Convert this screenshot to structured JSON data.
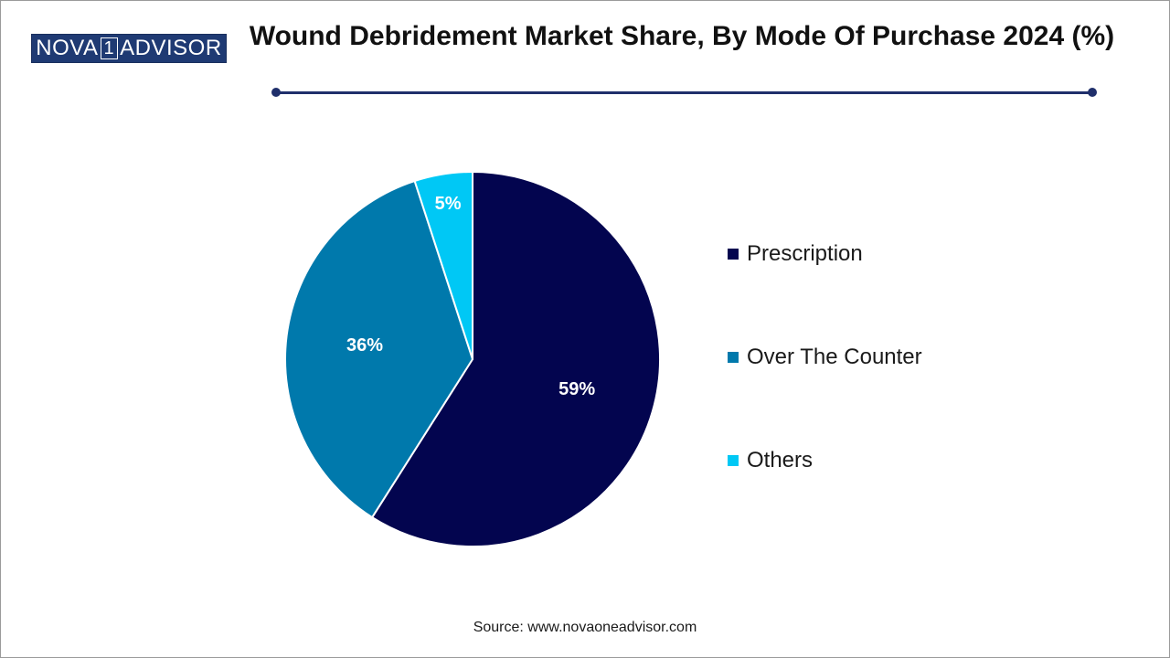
{
  "brand": {
    "left": "NOVA",
    "one": "1",
    "right": "ADVISOR"
  },
  "source": "Source: www.novaoneadvisor.com",
  "colors": {
    "accent": "#1f2f6b",
    "logo_bg": "#1f3a73"
  },
  "chart_data": {
    "type": "pie",
    "title": "Wound Debridement Market Share, By Mode Of Purchase 2024 (%)",
    "categories": [
      "Prescription",
      "Over The Counter",
      "Others"
    ],
    "values": [
      59,
      36,
      5
    ],
    "labels": [
      "59%",
      "36%",
      "5%"
    ],
    "colors": [
      "#03054f",
      "#0079ac",
      "#00c8f5"
    ],
    "legend_position": "right"
  }
}
